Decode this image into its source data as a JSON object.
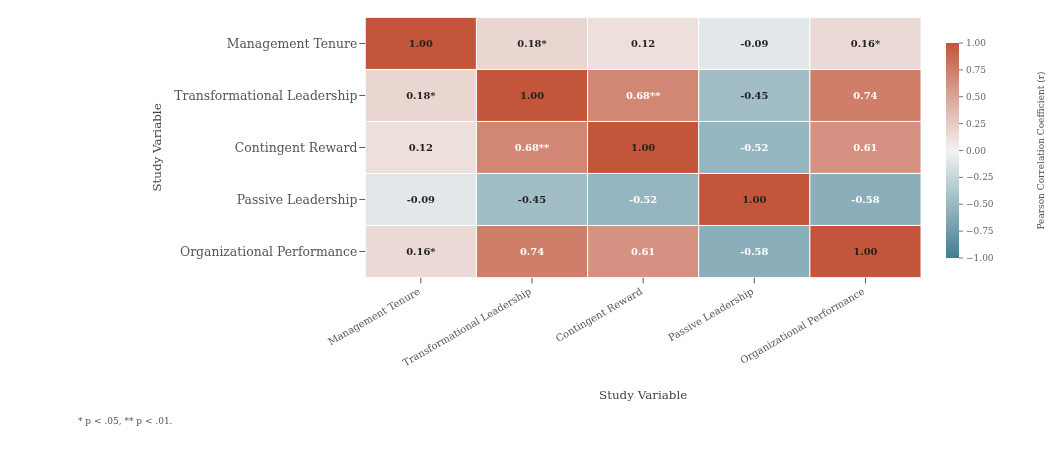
{
  "chart_data": {
    "type": "heatmap",
    "xlabel": "Study Variable",
    "ylabel": "Study Variable",
    "clabel": "Pearson Correlation Coefficient (r)",
    "categories": [
      "Management Tenure",
      "Transformational Leadership",
      "Contingent Reward",
      "Passive Leadership",
      "Organizational Performance"
    ],
    "y_categories": [
      "Management Tenure",
      "Transformational Leadership",
      "Contingent Reward",
      "Passive Leadership",
      "Organizational Performance"
    ],
    "cells": [
      [
        1.0,
        0.18,
        0.12,
        -0.09,
        0.16
      ],
      [
        0.18,
        1.0,
        0.68,
        -0.45,
        0.74
      ],
      [
        0.12,
        0.68,
        1.0,
        -0.52,
        0.61
      ],
      [
        -0.09,
        -0.45,
        -0.52,
        1.0,
        -0.58
      ],
      [
        0.16,
        0.74,
        0.61,
        -0.58,
        1.0
      ]
    ],
    "cell_labels": [
      [
        "1.00",
        "0.18*",
        "0.12",
        "-0.09",
        "0.16*"
      ],
      [
        "0.18*",
        "1.00",
        "0.68**",
        "-0.45",
        "0.74"
      ],
      [
        "0.12",
        "0.68**",
        "1.00",
        "-0.52",
        "0.61"
      ],
      [
        "-0.09",
        "-0.45",
        "-0.52",
        "1.00",
        "-0.58"
      ],
      [
        "0.16*",
        "0.74",
        "0.61",
        "-0.58",
        "1.00"
      ]
    ],
    "clim": [
      -1,
      1
    ],
    "cticks": [
      {
        "value": 1,
        "label": "1.00"
      },
      {
        "value": 0.75,
        "label": "0.75"
      },
      {
        "value": 0.5,
        "label": "0.50"
      },
      {
        "value": 0.25,
        "label": "0.25"
      },
      {
        "value": 0,
        "label": "0.00"
      },
      {
        "value": -0.25,
        "label": "−0.25"
      },
      {
        "value": -0.5,
        "label": "−0.50"
      },
      {
        "value": -0.75,
        "label": "−0.75"
      },
      {
        "value": -1,
        "label": "−1.00"
      }
    ],
    "annotations": [
      "* p < .05, ** p < .01."
    ]
  }
}
